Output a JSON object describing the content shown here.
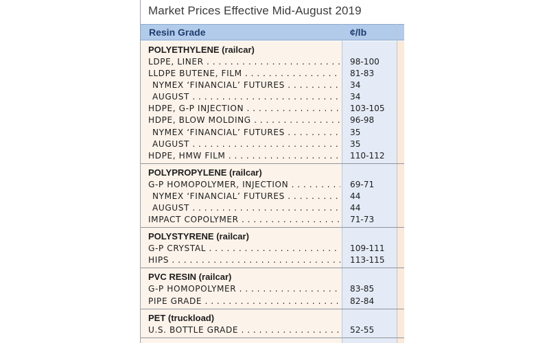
{
  "title": "Market Prices Effective Mid-August 2019",
  "header": {
    "grade_label": "Resin Grade",
    "unit_label": "¢/lb"
  },
  "sections": [
    {
      "heading": "POLYETHYLENE (railcar)",
      "rows": [
        {
          "name": "LDPE, LINER",
          "price": "98-100",
          "indent": false
        },
        {
          "name": "LLDPE BUTENE, FILM",
          "price": "81-83",
          "indent": false
        },
        {
          "name": "NYMEX ‘FINANCIAL’ FUTURES",
          "price": "34",
          "indent": true
        },
        {
          "name": "AUGUST",
          "price": "34",
          "indent": true
        },
        {
          "name": "HDPE, G-P INJECTION",
          "price": "103-105",
          "indent": false
        },
        {
          "name": "HDPE, BLOW MOLDING",
          "price": "96-98",
          "indent": false
        },
        {
          "name": "NYMEX ‘FINANCIAL’ FUTURES",
          "price": "35",
          "indent": true
        },
        {
          "name": "AUGUST",
          "price": "35",
          "indent": true
        },
        {
          "name": "HDPE, HMW FILM",
          "price": "110-112",
          "indent": false
        }
      ]
    },
    {
      "heading": "POLYPROPYLENE (railcar)",
      "rows": [
        {
          "name": "G-P HOMOPOLYMER, INJECTION",
          "price": "69-71",
          "indent": false
        },
        {
          "name": "NYMEX ‘FINANCIAL’ FUTURES",
          "price": "44",
          "indent": true
        },
        {
          "name": "AUGUST",
          "price": "44",
          "indent": true
        },
        {
          "name": "IMPACT COPOLYMER",
          "price": "71-73",
          "indent": false
        }
      ]
    },
    {
      "heading": "POLYSTYRENE (railcar)",
      "rows": [
        {
          "name": "G-P CRYSTAL",
          "price": "109-111",
          "indent": false
        },
        {
          "name": "HIPS",
          "price": "113-115",
          "indent": false
        }
      ]
    },
    {
      "heading": "PVC RESIN (railcar)",
      "rows": [
        {
          "name": "G-P HOMOPOLYMER",
          "price": "83-85",
          "indent": false
        },
        {
          "name": "PIPE GRADE",
          "price": "82-84",
          "indent": false
        }
      ]
    },
    {
      "heading": "PET (truckload)",
      "rows": [
        {
          "name": "U.S. BOTTLE GRADE",
          "price": "52-55",
          "indent": false
        }
      ]
    }
  ]
}
